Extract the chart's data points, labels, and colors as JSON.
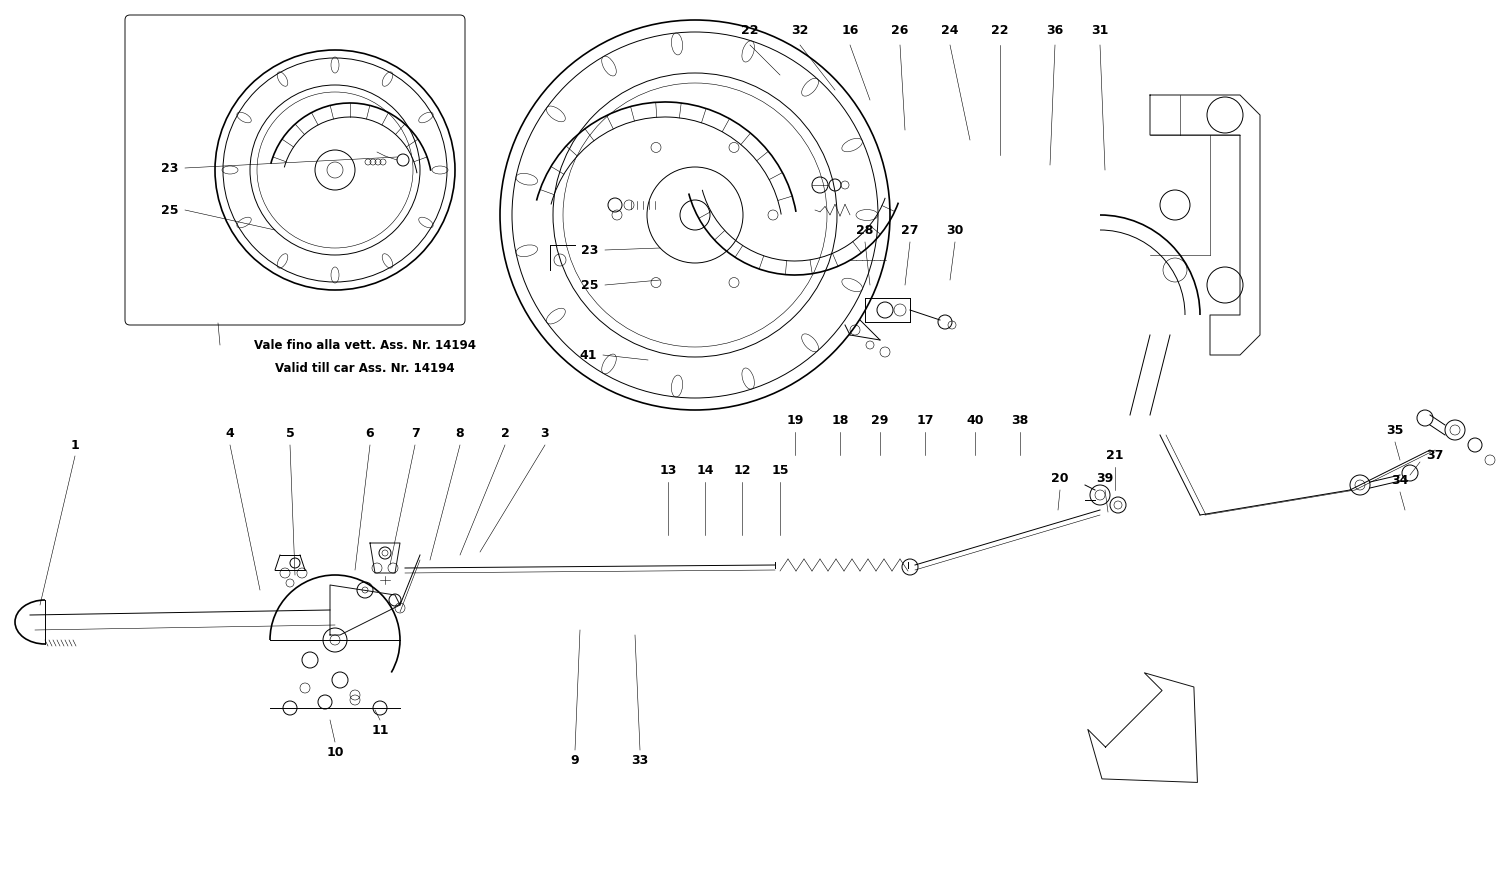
{
  "background_color": "#ffffff",
  "line_color": "#111111",
  "note_line1": "Vale fino alla vett. Ass. Nr. 14194",
  "note_line2": "Valid till car Ass. Nr. 14194",
  "fig_width": 15.0,
  "fig_height": 8.91
}
